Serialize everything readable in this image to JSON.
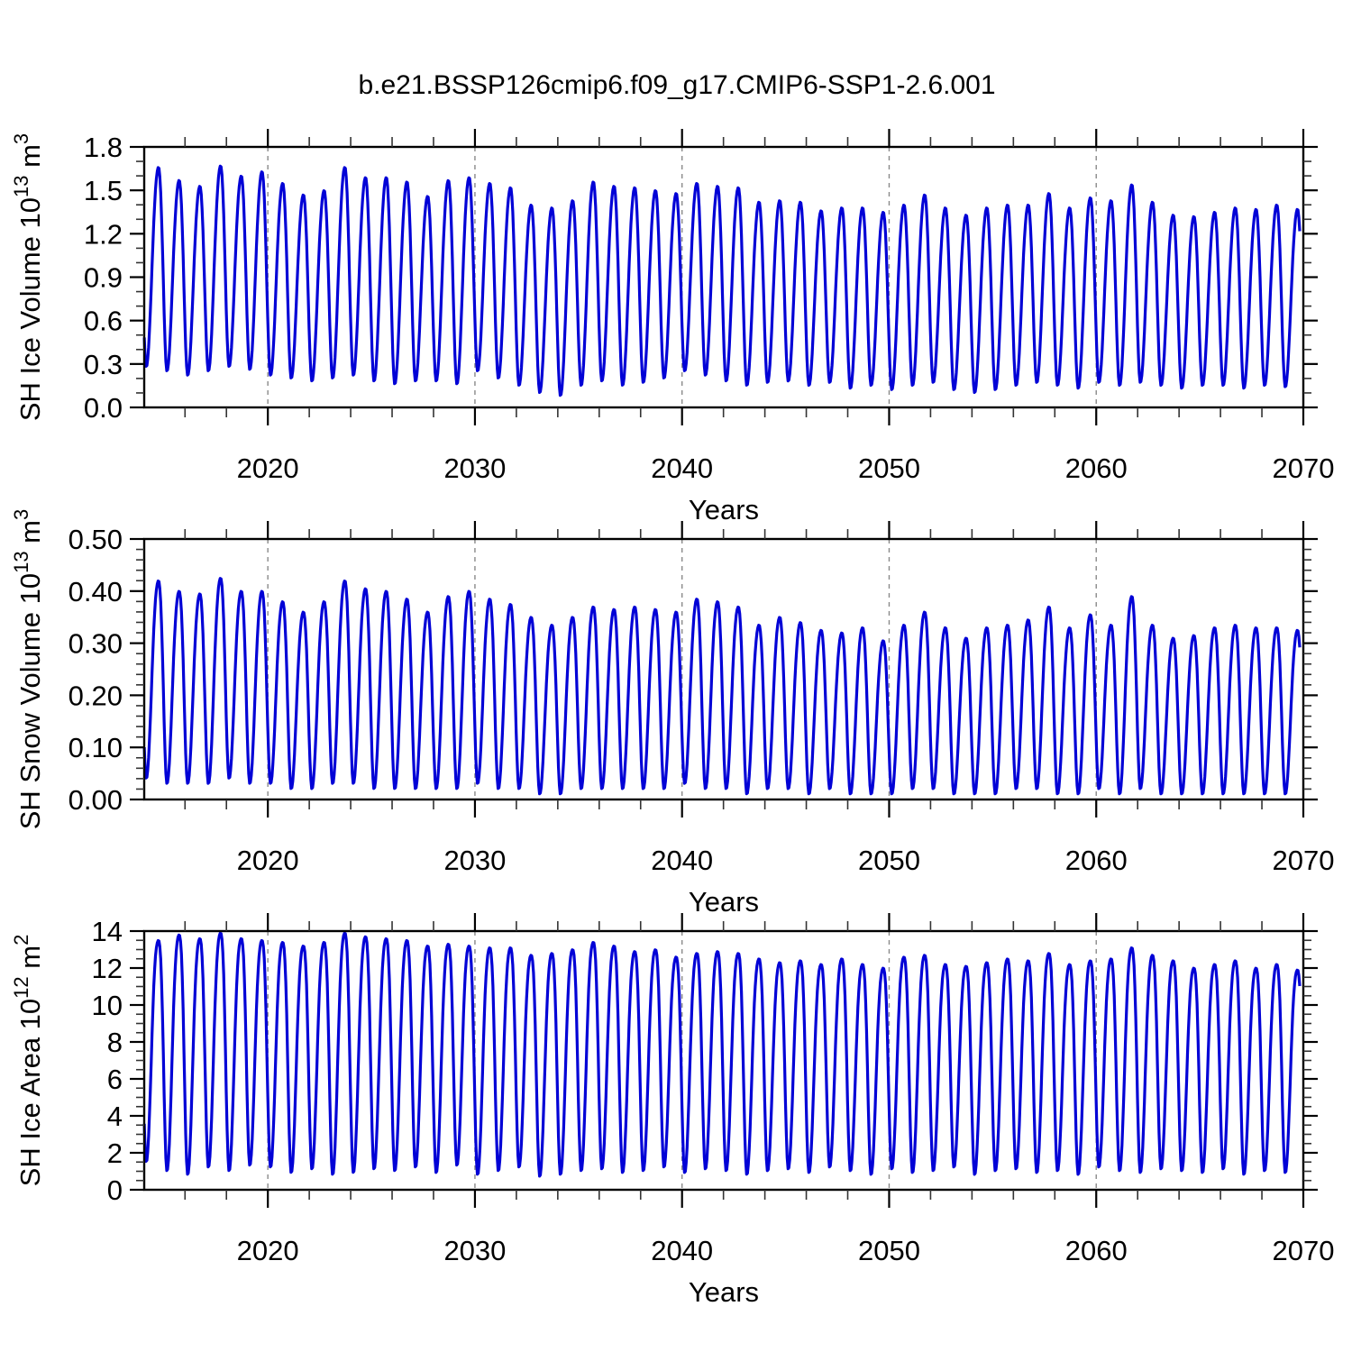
{
  "title": "b.e21.BSSP126cmip6.f09_g17.CMIP6-SSP1-2.6.001",
  "xlabel": "Years",
  "line_color": "#0202d6",
  "grid_color": "#8a8a8a",
  "axis_color": "#000000",
  "x_range": [
    2014.03,
    2070
  ],
  "x_major_ticks": [
    2020,
    2030,
    2040,
    2050,
    2060,
    2070
  ],
  "x_major_labels": [
    "2020",
    "2030",
    "2040",
    "2050",
    "2060",
    "2070"
  ],
  "x_minor_start": 2016,
  "x_minor_step": 2,
  "year_start": 2014,
  "chart_data": [
    {
      "type": "line",
      "name": "sh-ice-volume",
      "ylabel_parts": [
        {
          "t": "SH Ice Volume 10"
        },
        {
          "t": "13",
          "sup": true
        },
        {
          "t": " m"
        },
        {
          "t": "3",
          "sup": true
        }
      ],
      "ylim": [
        0,
        1.8
      ],
      "y_major_values": [
        0,
        0.3,
        0.6,
        0.9,
        1.2,
        1.5,
        1.8
      ],
      "y_major_labels": [
        "0.0",
        "0.3",
        "0.6",
        "0.9",
        "1.2",
        "1.5",
        "1.8"
      ],
      "y_minor_step": 0.1,
      "season": {
        "trough_phase": 0.13,
        "peak_phase": 0.72
      },
      "shape": 0.25,
      "peaks": [
        1.66,
        1.57,
        1.53,
        1.67,
        1.6,
        1.63,
        1.55,
        1.47,
        1.5,
        1.66,
        1.59,
        1.59,
        1.56,
        1.46,
        1.57,
        1.59,
        1.55,
        1.52,
        1.4,
        1.38,
        1.43,
        1.56,
        1.53,
        1.52,
        1.5,
        1.48,
        1.55,
        1.53,
        1.52,
        1.42,
        1.43,
        1.42,
        1.36,
        1.38,
        1.38,
        1.35,
        1.4,
        1.47,
        1.38,
        1.33,
        1.38,
        1.4,
        1.4,
        1.48,
        1.38,
        1.45,
        1.43,
        1.54,
        1.42,
        1.33,
        1.32,
        1.35,
        1.38,
        1.37,
        1.4,
        1.37
      ],
      "troughs": [
        0.28,
        0.25,
        0.22,
        0.25,
        0.28,
        0.26,
        0.22,
        0.2,
        0.18,
        0.2,
        0.22,
        0.18,
        0.16,
        0.18,
        0.18,
        0.16,
        0.25,
        0.2,
        0.15,
        0.1,
        0.08,
        0.15,
        0.18,
        0.15,
        0.17,
        0.2,
        0.25,
        0.22,
        0.18,
        0.15,
        0.17,
        0.18,
        0.15,
        0.17,
        0.13,
        0.15,
        0.12,
        0.15,
        0.17,
        0.12,
        0.1,
        0.12,
        0.15,
        0.17,
        0.15,
        0.13,
        0.17,
        0.15,
        0.17,
        0.15,
        0.13,
        0.15,
        0.15,
        0.13,
        0.15,
        0.14
      ]
    },
    {
      "type": "line",
      "name": "sh-snow-volume",
      "ylabel_parts": [
        {
          "t": "SH Snow Volume 10"
        },
        {
          "t": "13",
          "sup": true
        },
        {
          "t": " m"
        },
        {
          "t": "3",
          "sup": true
        }
      ],
      "ylim": [
        0,
        0.5
      ],
      "y_major_values": [
        0,
        0.1,
        0.2,
        0.3,
        0.4,
        0.5
      ],
      "y_major_labels": [
        "0.00",
        "0.10",
        "0.20",
        "0.30",
        "0.40",
        "0.50"
      ],
      "y_minor_step": 0.02,
      "season": {
        "trough_phase": 0.13,
        "peak_phase": 0.72
      },
      "shape": 0.4,
      "peaks": [
        0.42,
        0.4,
        0.395,
        0.425,
        0.4,
        0.4,
        0.38,
        0.36,
        0.38,
        0.42,
        0.405,
        0.4,
        0.385,
        0.36,
        0.39,
        0.4,
        0.385,
        0.375,
        0.35,
        0.335,
        0.35,
        0.37,
        0.365,
        0.37,
        0.365,
        0.36,
        0.385,
        0.38,
        0.37,
        0.335,
        0.35,
        0.34,
        0.325,
        0.32,
        0.33,
        0.305,
        0.335,
        0.36,
        0.33,
        0.31,
        0.33,
        0.335,
        0.345,
        0.37,
        0.33,
        0.355,
        0.335,
        0.39,
        0.335,
        0.31,
        0.315,
        0.33,
        0.335,
        0.33,
        0.33,
        0.325
      ],
      "troughs": [
        0.04,
        0.03,
        0.03,
        0.03,
        0.04,
        0.03,
        0.03,
        0.02,
        0.02,
        0.03,
        0.03,
        0.02,
        0.02,
        0.02,
        0.02,
        0.02,
        0.03,
        0.02,
        0.02,
        0.01,
        0.01,
        0.02,
        0.02,
        0.02,
        0.02,
        0.02,
        0.03,
        0.02,
        0.02,
        0.01,
        0.02,
        0.02,
        0.01,
        0.02,
        0.01,
        0.01,
        0.01,
        0.02,
        0.02,
        0.01,
        0.01,
        0.01,
        0.02,
        0.02,
        0.01,
        0.01,
        0.02,
        0.01,
        0.02,
        0.01,
        0.01,
        0.01,
        0.01,
        0.01,
        0.01,
        0.01
      ]
    },
    {
      "type": "line",
      "name": "sh-ice-area",
      "ylabel_parts": [
        {
          "t": "SH Ice Area 10"
        },
        {
          "t": "12",
          "sup": true
        },
        {
          "t": " m"
        },
        {
          "t": "2",
          "sup": true
        }
      ],
      "ylim": [
        0,
        14
      ],
      "y_major_values": [
        0,
        2,
        4,
        6,
        8,
        10,
        12,
        14
      ],
      "y_major_labels": [
        "0",
        "2",
        "4",
        "6",
        "8",
        "10",
        "12",
        "14"
      ],
      "y_minor_step": 0.5,
      "season": {
        "trough_phase": 0.13,
        "peak_phase": 0.72
      },
      "shape": 0.6,
      "peaks": [
        13.5,
        13.8,
        13.6,
        13.9,
        13.6,
        13.5,
        13.4,
        13.2,
        13.4,
        13.9,
        13.7,
        13.6,
        13.5,
        13.2,
        13.3,
        13.2,
        13.1,
        13.1,
        12.7,
        12.8,
        13.0,
        13.4,
        13.2,
        12.9,
        13.0,
        12.6,
        12.8,
        12.9,
        12.8,
        12.5,
        12.3,
        12.4,
        12.2,
        12.5,
        12.2,
        12.0,
        12.6,
        12.7,
        12.2,
        12.1,
        12.3,
        12.5,
        12.4,
        12.8,
        12.2,
        12.4,
        12.5,
        13.1,
        12.7,
        12.4,
        12.0,
        12.2,
        12.4,
        12.0,
        12.2,
        11.9
      ],
      "troughs": [
        1.5,
        1.0,
        0.8,
        1.2,
        1.0,
        1.3,
        1.2,
        0.9,
        1.1,
        0.8,
        0.9,
        1.1,
        1.0,
        1.2,
        0.9,
        1.3,
        0.8,
        1.0,
        1.2,
        0.7,
        0.8,
        1.0,
        1.1,
        0.9,
        1.0,
        1.2,
        0.9,
        1.1,
        1.0,
        0.8,
        1.0,
        1.1,
        0.9,
        1.2,
        1.0,
        0.8,
        1.1,
        0.9,
        1.0,
        1.2,
        0.8,
        1.0,
        1.1,
        0.9,
        1.0,
        0.8,
        1.2,
        1.0,
        0.9,
        1.1,
        1.0,
        0.9,
        1.1,
        0.8,
        1.0,
        0.9
      ]
    }
  ]
}
